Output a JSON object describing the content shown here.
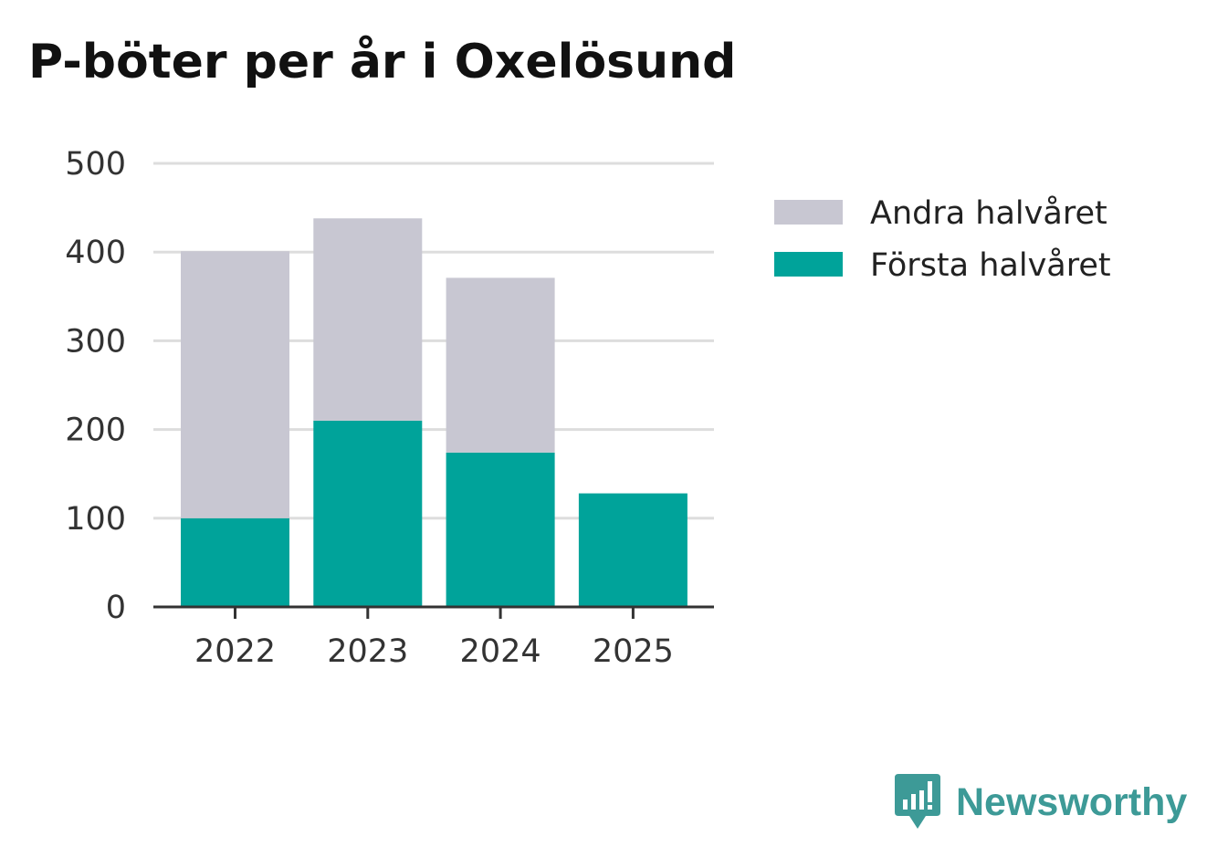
{
  "colors": {
    "first_half": "#00a39a",
    "second_half": "#c8c7d2",
    "grid": "#dddddd",
    "axis": "#333333",
    "brand": "#3d9a97"
  },
  "brand": {
    "name": "Newsworthy",
    "icon": "newsworthy-logo-icon"
  },
  "chart_data": {
    "type": "bar",
    "stacked": true,
    "title": "P-böter per år i Oxelösund",
    "xlabel": "",
    "ylabel": "",
    "categories": [
      "2022",
      "2023",
      "2024",
      "2025"
    ],
    "series": [
      {
        "name": "Första halvåret",
        "values": [
          100,
          210,
          174,
          128
        ]
      },
      {
        "name": "Andra halvåret",
        "values": [
          301,
          228,
          197,
          0
        ]
      }
    ],
    "ylim": [
      0,
      500
    ],
    "yticks": [
      0,
      100,
      200,
      300,
      400,
      500
    ],
    "grid": true,
    "legend": {
      "placement": "right",
      "entries": [
        "Andra halvåret",
        "Första halvåret"
      ]
    }
  }
}
